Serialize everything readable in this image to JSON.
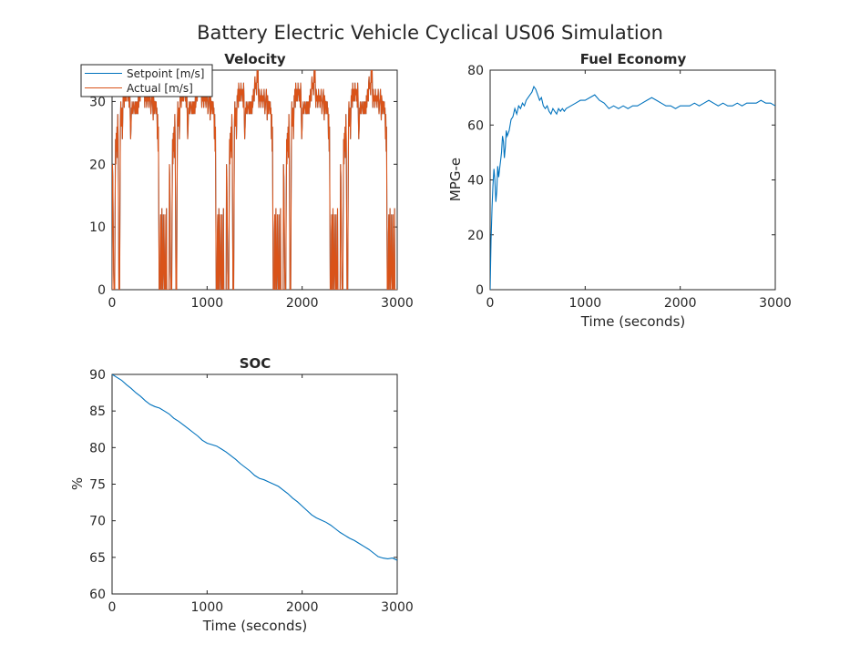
{
  "figure": {
    "suptitle": "Battery Electric Vehicle Cyclical US06 Simulation"
  },
  "colors": {
    "setpoint": "#0072BD",
    "actual": "#D95319",
    "axis": "#262626"
  },
  "chart_data": [
    {
      "id": "velocity",
      "type": "line",
      "title": "Velocity",
      "xlabel": "",
      "ylabel": "",
      "xlim": [
        0,
        3000
      ],
      "ylim": [
        0,
        35
      ],
      "xticks": [
        0,
        1000,
        2000,
        3000
      ],
      "yticks": [
        0,
        10,
        20,
        30
      ],
      "grid": false,
      "legend": {
        "placement": "top-left",
        "entries": [
          "Setpoint [m/s]",
          "Actual [m/s]"
        ]
      },
      "cycle_period": 600,
      "cycles": 5,
      "cycle_profile": {
        "t": [
          0,
          4,
          8,
          12,
          16,
          20,
          24,
          28,
          32,
          36,
          40,
          44,
          48,
          52,
          56,
          60,
          64,
          68,
          72,
          76,
          80,
          84,
          88,
          92,
          96,
          100,
          104,
          108,
          112,
          116,
          120,
          124,
          128,
          132,
          136,
          140,
          144,
          148,
          152,
          156,
          160,
          164,
          168,
          172,
          176,
          180,
          184,
          188,
          192,
          196,
          200,
          204,
          208,
          212,
          216,
          220,
          224,
          228,
          232,
          236,
          240,
          244,
          248,
          252,
          256,
          260,
          264,
          268,
          272,
          276,
          280,
          284,
          288,
          292,
          296,
          300,
          304,
          308,
          312,
          316,
          320,
          324,
          328,
          332,
          336,
          340,
          344,
          348,
          352,
          356,
          360,
          364,
          368,
          372,
          376,
          380,
          384,
          388,
          392,
          396,
          400,
          404,
          408,
          412,
          416,
          420,
          424,
          428,
          432,
          436,
          440,
          444,
          448,
          452,
          456,
          460,
          464,
          468,
          472,
          476,
          480,
          484,
          488,
          492,
          496,
          500,
          504,
          508,
          512,
          516,
          520,
          524,
          528,
          532,
          536,
          540,
          544,
          548,
          552,
          556,
          560,
          564,
          568,
          572,
          576,
          580,
          584,
          588,
          592,
          596
        ],
        "v": [
          0,
          20,
          18,
          10,
          3,
          0,
          0,
          0,
          12,
          24,
          20,
          25,
          22,
          26,
          21,
          28,
          24,
          12,
          0,
          0,
          0,
          16,
          27,
          30,
          26,
          27,
          29,
          24,
          27,
          31,
          30,
          32,
          29,
          33,
          31,
          30,
          32,
          31,
          30,
          33,
          31,
          32,
          31,
          30,
          32,
          29,
          33,
          31,
          27,
          24,
          26,
          29,
          28,
          30,
          29,
          28,
          29,
          30,
          29,
          29,
          28,
          30,
          28,
          30,
          29,
          28,
          30,
          29,
          28,
          31,
          29,
          30,
          32,
          31,
          30,
          33,
          34,
          32,
          33,
          32,
          31,
          34,
          36,
          33,
          35,
          31,
          29,
          32,
          31,
          30,
          31,
          29,
          30,
          32,
          30,
          31,
          30,
          29,
          31,
          30,
          32,
          30,
          28,
          29,
          30,
          31,
          32,
          29,
          27,
          31,
          30,
          28,
          30,
          30,
          29,
          28,
          30,
          28,
          29,
          24,
          28,
          22,
          26,
          12,
          0,
          0,
          0,
          9,
          12,
          0,
          7,
          13,
          0,
          0,
          4,
          12,
          3,
          0,
          0,
          12,
          0,
          0,
          3,
          13,
          0,
          0,
          0,
          0,
          0,
          0
        ]
      }
    },
    {
      "id": "fuel-economy",
      "type": "line",
      "title": "Fuel Economy",
      "xlabel": "Time (seconds)",
      "ylabel": "MPG-e",
      "xlim": [
        0,
        3000
      ],
      "ylim": [
        0,
        80
      ],
      "xticks": [
        0,
        1000,
        2000,
        3000
      ],
      "yticks": [
        0,
        20,
        40,
        60,
        80
      ],
      "grid": false,
      "series": [
        {
          "x": [
            0,
            10,
            20,
            30,
            40,
            50,
            60,
            70,
            80,
            90,
            100,
            110,
            120,
            130,
            140,
            150,
            160,
            170,
            180,
            200,
            220,
            240,
            260,
            280,
            300,
            320,
            340,
            360,
            380,
            400,
            420,
            440,
            460,
            480,
            500,
            520,
            540,
            560,
            580,
            600,
            620,
            640,
            660,
            680,
            700,
            720,
            740,
            760,
            780,
            800,
            850,
            900,
            950,
            1000,
            1050,
            1100,
            1150,
            1200,
            1250,
            1300,
            1350,
            1400,
            1450,
            1500,
            1550,
            1600,
            1650,
            1700,
            1750,
            1800,
            1850,
            1900,
            1950,
            2000,
            2050,
            2100,
            2150,
            2200,
            2250,
            2300,
            2350,
            2400,
            2450,
            2500,
            2550,
            2600,
            2650,
            2700,
            2750,
            2800,
            2850,
            2900,
            2950,
            3000
          ],
          "y": [
            0,
            18,
            30,
            38,
            44,
            40,
            32,
            36,
            45,
            41,
            44,
            47,
            50,
            56,
            54,
            48,
            52,
            58,
            56,
            58,
            62,
            63,
            66,
            64,
            67,
            66,
            68,
            67,
            69,
            70,
            71,
            72,
            74,
            73,
            71,
            69,
            70,
            67,
            66,
            67,
            65,
            64,
            66,
            65,
            64,
            66,
            65,
            66,
            65,
            66,
            67,
            68,
            69,
            69,
            70,
            71,
            69,
            68,
            66,
            67,
            66,
            67,
            66,
            67,
            67,
            68,
            69,
            70,
            69,
            68,
            67,
            67,
            66,
            67,
            67,
            67,
            68,
            67,
            68,
            69,
            68,
            67,
            68,
            67,
            67,
            68,
            67,
            68,
            68,
            68,
            69,
            68,
            68,
            67
          ]
        }
      ]
    },
    {
      "id": "soc",
      "type": "line",
      "title": "SOC",
      "xlabel": "Time (seconds)",
      "ylabel": "%",
      "xlim": [
        0,
        3000
      ],
      "ylim": [
        60,
        90
      ],
      "xticks": [
        0,
        1000,
        2000,
        3000
      ],
      "yticks": [
        60,
        65,
        70,
        75,
        80,
        85,
        90
      ],
      "grid": false,
      "series": [
        {
          "x": [
            0,
            50,
            100,
            150,
            200,
            250,
            300,
            350,
            400,
            450,
            500,
            550,
            600,
            650,
            700,
            750,
            800,
            850,
            900,
            950,
            1000,
            1050,
            1100,
            1150,
            1200,
            1250,
            1300,
            1350,
            1400,
            1450,
            1500,
            1550,
            1600,
            1650,
            1700,
            1750,
            1800,
            1850,
            1900,
            1950,
            2000,
            2050,
            2100,
            2150,
            2200,
            2250,
            2300,
            2350,
            2400,
            2450,
            2500,
            2550,
            2600,
            2650,
            2700,
            2750,
            2800,
            2850,
            2900,
            2950,
            3000
          ],
          "y": [
            90,
            89.6,
            89.2,
            88.6,
            88.1,
            87.5,
            87.0,
            86.4,
            85.9,
            85.6,
            85.4,
            85.0,
            84.6,
            84.0,
            83.6,
            83.1,
            82.6,
            82.1,
            81.6,
            81.0,
            80.6,
            80.4,
            80.2,
            79.8,
            79.4,
            78.9,
            78.4,
            77.8,
            77.3,
            76.8,
            76.2,
            75.8,
            75.6,
            75.3,
            75.0,
            74.7,
            74.2,
            73.7,
            73.1,
            72.6,
            72.0,
            71.4,
            70.8,
            70.4,
            70.1,
            69.8,
            69.4,
            68.9,
            68.4,
            68.0,
            67.6,
            67.3,
            66.9,
            66.5,
            66.1,
            65.6,
            65.1,
            64.9,
            64.8,
            64.9,
            64.6
          ]
        }
      ]
    }
  ]
}
